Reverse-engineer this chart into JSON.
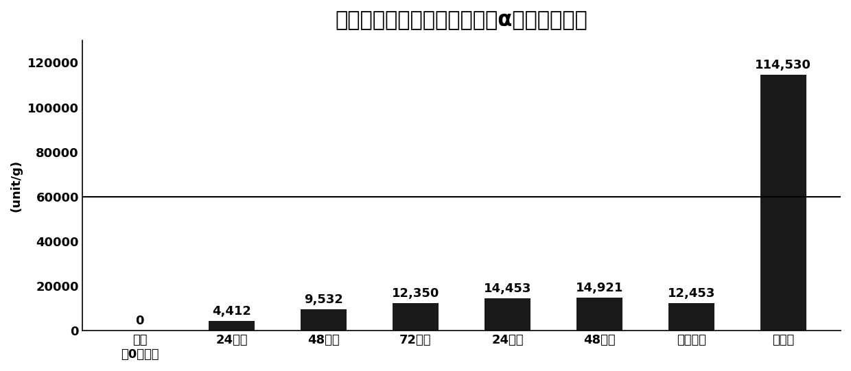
{
  "title": "不同工序步骤的大豆组合物的α淀粉酶酶活性",
  "ylabel": "(unit/g)",
  "categories": [
    "对照\n（0小时）",
    "24小时",
    "48小时",
    "72小时",
    "24小时",
    "48小时",
    "低温杀菌",
    "干燥后"
  ],
  "values": [
    0,
    4412,
    9532,
    12350,
    14453,
    14921,
    12453,
    114530
  ],
  "bar_labels": [
    "0",
    "4,412",
    "9,532",
    "12,350",
    "14,453",
    "14,921",
    "12,453",
    "114,530"
  ],
  "bar_color": "#1a1a1a",
  "ylim": [
    0,
    130000
  ],
  "yticks": [
    0,
    20000,
    40000,
    60000,
    80000,
    100000,
    120000
  ],
  "ytick_labels": [
    "0",
    "20000",
    "40000",
    "60000",
    "80000",
    "100000",
    "120000"
  ],
  "hline_y": 60000,
  "hline_color": "#000000",
  "background_color": "#ffffff",
  "title_fontsize": 22,
  "label_fontsize": 13,
  "tick_fontsize": 13,
  "ylabel_fontsize": 13
}
